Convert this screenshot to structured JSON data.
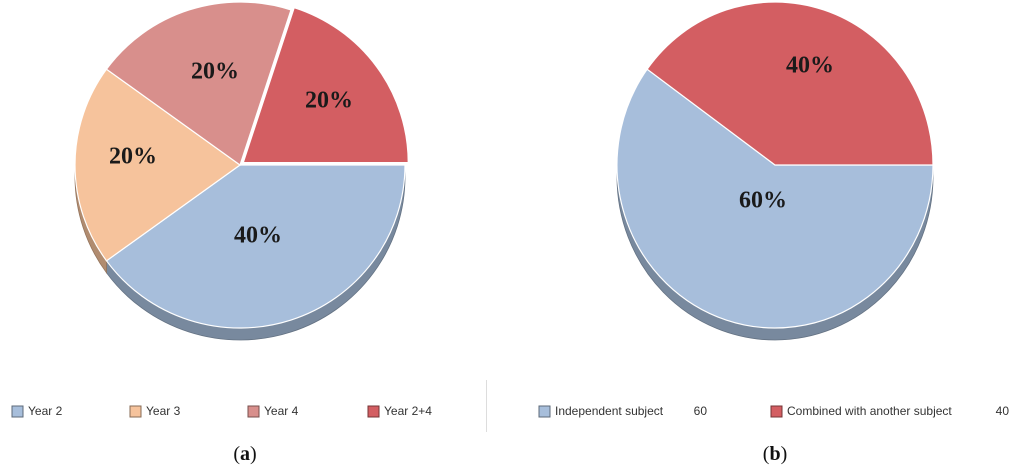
{
  "chart_data": [
    {
      "type": "pie",
      "panel": "a",
      "categories": [
        "Year 2",
        "Year 3",
        "Year 4",
        "Year 2+4"
      ],
      "values": [
        40,
        20,
        20,
        20
      ],
      "data_labels": [
        "40%",
        "20%",
        "20%",
        "20%"
      ],
      "colors": [
        "#a7bedb",
        "#f6c39c",
        "#d88f8c",
        "#d35e62"
      ],
      "legend_position": "bottom",
      "caption_letter": "a"
    },
    {
      "type": "pie",
      "panel": "b",
      "categories": [
        "Independent subject",
        "Combined with another subject"
      ],
      "values": [
        60,
        40
      ],
      "legend_values": [
        "60",
        "40"
      ],
      "data_labels": [
        "60%",
        "40%"
      ],
      "colors": [
        "#a7bedb",
        "#d35e62"
      ],
      "legend_position": "bottom",
      "caption_letter": "b"
    }
  ]
}
